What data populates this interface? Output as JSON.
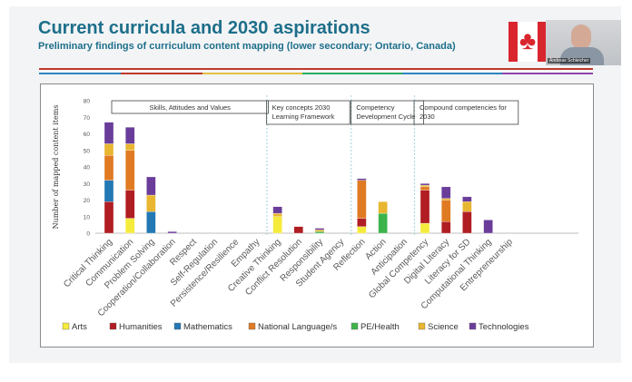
{
  "slide": {
    "title": "Current curricula and 2030 aspirations",
    "subtitle": "Preliminary findings of curriculum content mapping (lower secondary; Ontario, Canada)",
    "presenter_name": "Andreas Schleicher"
  },
  "icons": {
    "flag": "canada-flag-icon",
    "webcam": "webcam-video-tile"
  },
  "colors": {
    "title": "#1d6f8a",
    "stripe_red": "#c0392b",
    "stripes": [
      "#2e86c1",
      "#c0392b",
      "#e4c142",
      "#27ae60",
      "#2e86c1",
      "#8e44ad"
    ]
  },
  "chart_data": {
    "type": "bar",
    "stacked": true,
    "ylabel": "Number of mapped content items",
    "ylim": [
      0,
      80
    ],
    "yticks": [
      0,
      10,
      20,
      30,
      40,
      50,
      60,
      70,
      80
    ],
    "categories": [
      "Critical Thinking",
      "Communication",
      "Problem Solving",
      "Cooperation/Collaboration",
      "Respect",
      "Self-Regulation",
      "Persistence/Resilience",
      "Empathy",
      "Creative Thinking",
      "Conflict Resolution",
      "Responsibility",
      "Student Agency",
      "Reflection",
      "Action",
      "Anticipation",
      "Global Competency",
      "Digital Literacy",
      "Literacy for SD",
      "Computational Thinking",
      "Entrepreneurship"
    ],
    "groups": [
      {
        "label": "Skills, Attitudes and Values",
        "categories": [
          0,
          1,
          2,
          3,
          4,
          5,
          6,
          7
        ]
      },
      {
        "label": "Key concepts 2030 Learning Framework",
        "categories": [
          8,
          9,
          10,
          11
        ]
      },
      {
        "label": "Competency Development Cycle",
        "categories": [
          12,
          13,
          14
        ]
      },
      {
        "label": "Compound competencies for 2030",
        "categories": [
          15,
          16,
          17,
          18,
          19
        ]
      }
    ],
    "series": [
      {
        "name": "Arts",
        "color": "#f5eb3c",
        "values": [
          0,
          9,
          0,
          0,
          0,
          0,
          0,
          0,
          10,
          0,
          0,
          0,
          4,
          0,
          0,
          6,
          0,
          0,
          0,
          0
        ]
      },
      {
        "name": "Humanities",
        "color": "#b01d23",
        "values": [
          19,
          17,
          0,
          0,
          0,
          0,
          0,
          0,
          0,
          4,
          0,
          0,
          5,
          0,
          0,
          20,
          7,
          13,
          0,
          0
        ]
      },
      {
        "name": "Mathematics",
        "color": "#2478b4",
        "values": [
          13,
          0,
          13,
          0,
          0,
          0,
          0,
          0,
          0,
          0,
          0,
          0,
          0,
          0,
          0,
          0,
          0,
          0,
          0,
          0
        ]
      },
      {
        "name": "National Language/s",
        "color": "#e07b24",
        "values": [
          15,
          24,
          0,
          0,
          0,
          0,
          0,
          0,
          0,
          0,
          0,
          0,
          23,
          0,
          0,
          2,
          13,
          0,
          0,
          0
        ]
      },
      {
        "name": "PE/Health",
        "color": "#3cb44b",
        "values": [
          0,
          0,
          0,
          0,
          0,
          0,
          0,
          0,
          0,
          0,
          1,
          0,
          0,
          12,
          0,
          0,
          0,
          0,
          0,
          0
        ]
      },
      {
        "name": "Science",
        "color": "#e8b630",
        "values": [
          7,
          4,
          10,
          0,
          0,
          0,
          0,
          0,
          2,
          0,
          1,
          0,
          0,
          7,
          0,
          1,
          1,
          6,
          0,
          0
        ]
      },
      {
        "name": "Technologies",
        "color": "#6a3d9a",
        "values": [
          13,
          10,
          11,
          1,
          0,
          0,
          0,
          0,
          4,
          0,
          1,
          0,
          1,
          0,
          0,
          1,
          7,
          3,
          8,
          0
        ]
      }
    ],
    "legend_position": "bottom",
    "grid": false
  }
}
